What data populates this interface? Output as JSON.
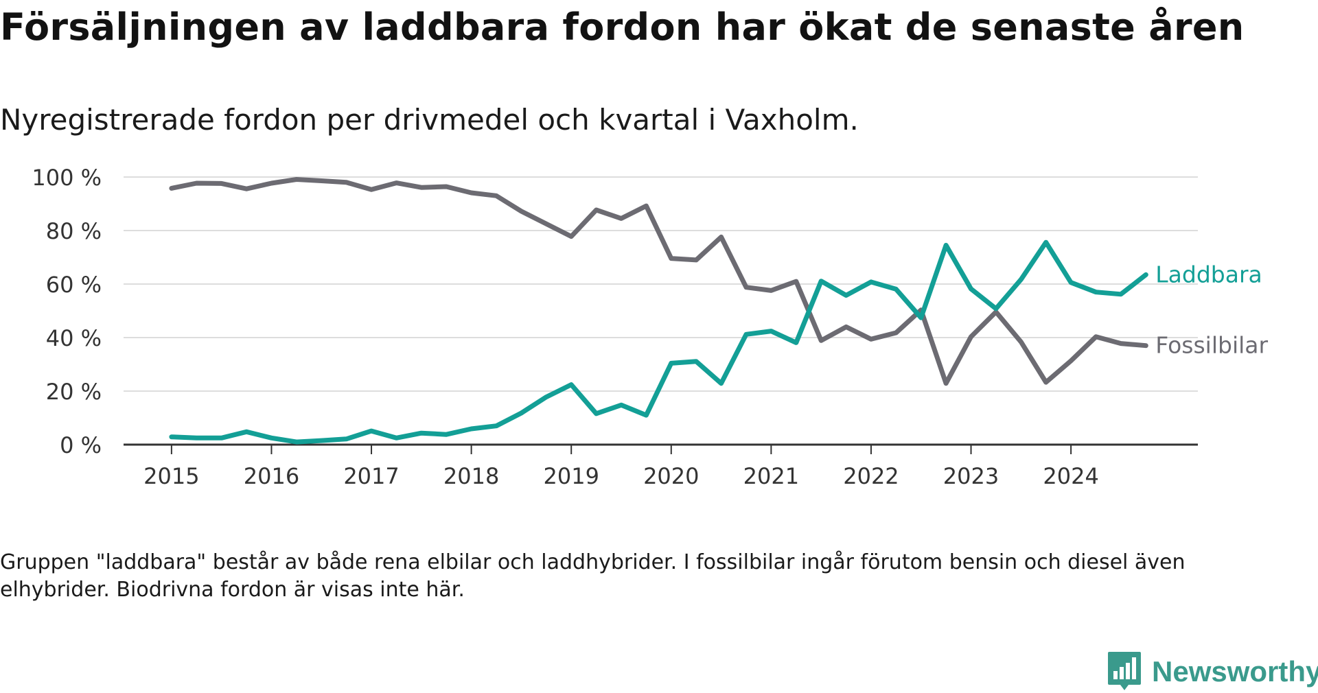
{
  "title": "Försäljningen av laddbara fordon har ökat de senaste åren",
  "subtitle": "Nyregistrerade fordon per drivmedel och kvartal i Vaxholm.",
  "note": "Gruppen \"laddbara\" består av både rena elbilar och laddhybrider. I fossilbilar ingår förutom bensin och diesel även elhybrider. Biodrivna fordon är visas inte här.",
  "brand": {
    "name": "Newsworthy",
    "color": "#3a9a8c"
  },
  "chart_data": {
    "type": "line",
    "title": "Försäljningen av laddbara fordon har ökat de senaste åren",
    "subtitle": "Nyregistrerade fordon per drivmedel och kvartal i Vaxholm.",
    "xlabel": "",
    "ylabel": "",
    "ylim": [
      0,
      100
    ],
    "yticks": [
      0,
      20,
      40,
      60,
      80,
      100
    ],
    "ytick_labels": [
      "0 %",
      "20 %",
      "40 %",
      "60 %",
      "80 %",
      "100 %"
    ],
    "xticks": [
      2015,
      2016,
      2017,
      2018,
      2019,
      2020,
      2021,
      2022,
      2023,
      2024
    ],
    "xtick_labels": [
      "2015",
      "2016",
      "2017",
      "2018",
      "2019",
      "2020",
      "2021",
      "2022",
      "2023",
      "2024"
    ],
    "xlim": [
      2014.52,
      2025.27
    ],
    "grid": true,
    "legend": "direct labels at line ends (right)",
    "x": [
      2015.0,
      2015.25,
      2015.5,
      2015.75,
      2016.0,
      2016.25,
      2016.5,
      2016.75,
      2017.0,
      2017.25,
      2017.5,
      2017.75,
      2018.0,
      2018.25,
      2018.5,
      2018.75,
      2019.0,
      2019.25,
      2019.5,
      2019.75,
      2020.0,
      2020.25,
      2020.5,
      2020.75,
      2021.0,
      2021.25,
      2021.5,
      2021.75,
      2022.0,
      2022.25,
      2022.5,
      2022.75,
      2023.0,
      2023.25,
      2023.5,
      2023.75,
      2024.0,
      2024.25,
      2024.5,
      2024.75
    ],
    "series": [
      {
        "name": "Fossilbilar",
        "label": "Fossilbilar",
        "color": "#6c6b72",
        "values": [
          95.8,
          97.7,
          97.6,
          95.6,
          97.7,
          99.1,
          98.6,
          98.0,
          95.3,
          97.8,
          96.1,
          96.4,
          94.1,
          93.0,
          87.2,
          82.5,
          77.8,
          87.7,
          84.5,
          89.2,
          69.6,
          69.0,
          77.6,
          58.8,
          57.6,
          61.0,
          38.9,
          44.0,
          39.4,
          41.8,
          50.3,
          22.9,
          40.3,
          49.6,
          38.4,
          23.3,
          31.3,
          40.3,
          37.8,
          37.0
        ]
      },
      {
        "name": "Laddbara",
        "label": "Laddbara",
        "color": "#139f96",
        "values": [
          2.9,
          2.5,
          2.5,
          4.8,
          2.5,
          1.0,
          1.5,
          2.1,
          5.1,
          2.5,
          4.3,
          3.8,
          5.9,
          7.0,
          11.8,
          17.8,
          22.4,
          11.6,
          14.8,
          11.0,
          30.4,
          31.1,
          22.9,
          41.2,
          42.4,
          38.1,
          61.1,
          55.8,
          60.8,
          58.1,
          47.4,
          74.5,
          58.2,
          50.8,
          61.7,
          75.6,
          60.6,
          57.0,
          56.2,
          63.5
        ]
      }
    ]
  }
}
